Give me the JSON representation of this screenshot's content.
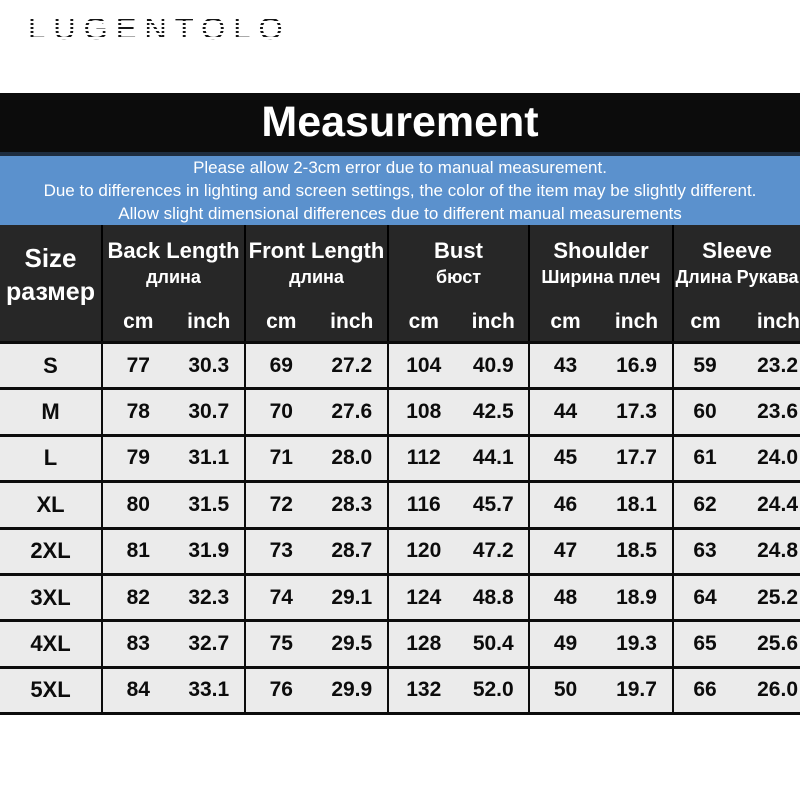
{
  "brand": {
    "logo": "LUGENTOLO"
  },
  "banner": {
    "title": "Measurement",
    "bg": "#0c0c0c",
    "fg": "#ffffff"
  },
  "disclaimer": {
    "bg": "#5b91cd",
    "fg": "#ffffff",
    "lines": [
      "Please allow 2-3cm error due to manual measurement.",
      "Due to differences in lighting and screen settings, the color of the item may be slightly different.",
      "Allow slight dimensional differences due to different manual measurements"
    ]
  },
  "chart_data": {
    "type": "table",
    "title": "Measurement",
    "header": {
      "size": {
        "en": "Size",
        "ru": "размер"
      },
      "groups": [
        {
          "en": "Back Length",
          "ru": "длина"
        },
        {
          "en": "Front Length",
          "ru": "длина"
        },
        {
          "en": "Bust",
          "ru": "бюст"
        },
        {
          "en": "Shoulder",
          "ru": "Ширина плеч"
        },
        {
          "en": "Sleeve",
          "ru": "Длина Рукава"
        }
      ],
      "units": [
        "cm",
        "inch"
      ]
    },
    "rows": [
      {
        "size": "S",
        "values": [
          "77",
          "30.3",
          "69",
          "27.2",
          "104",
          "40.9",
          "43",
          "16.9",
          "59",
          "23.2"
        ]
      },
      {
        "size": "M",
        "values": [
          "78",
          "30.7",
          "70",
          "27.6",
          "108",
          "42.5",
          "44",
          "17.3",
          "60",
          "23.6"
        ]
      },
      {
        "size": "L",
        "values": [
          "79",
          "31.1",
          "71",
          "28.0",
          "112",
          "44.1",
          "45",
          "17.7",
          "61",
          "24.0"
        ]
      },
      {
        "size": "XL",
        "values": [
          "80",
          "31.5",
          "72",
          "28.3",
          "116",
          "45.7",
          "46",
          "18.1",
          "62",
          "24.4"
        ]
      },
      {
        "size": "2XL",
        "values": [
          "81",
          "31.9",
          "73",
          "28.7",
          "120",
          "47.2",
          "47",
          "18.5",
          "63",
          "24.8"
        ]
      },
      {
        "size": "3XL",
        "values": [
          "82",
          "32.3",
          "74",
          "29.1",
          "124",
          "48.8",
          "48",
          "18.9",
          "64",
          "25.2"
        ]
      },
      {
        "size": "4XL",
        "values": [
          "83",
          "32.7",
          "75",
          "29.5",
          "128",
          "50.4",
          "49",
          "19.3",
          "65",
          "25.6"
        ]
      },
      {
        "size": "5XL",
        "values": [
          "84",
          "33.1",
          "76",
          "29.9",
          "132",
          "52.0",
          "50",
          "19.7",
          "66",
          "26.0"
        ]
      }
    ]
  }
}
